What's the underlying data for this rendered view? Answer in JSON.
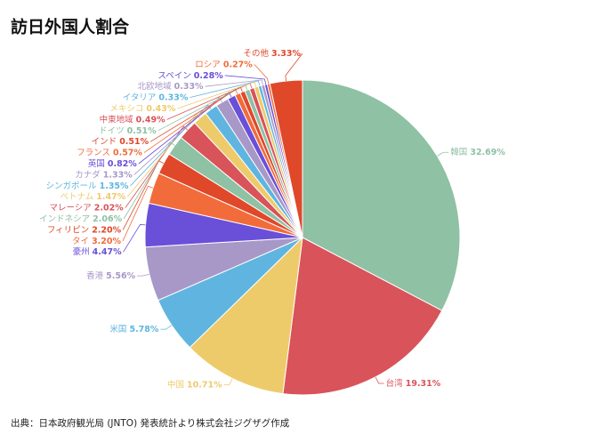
{
  "chart_data": {
    "type": "pie",
    "title": "訪日外国人割合",
    "source": "出典：日本政府観光局 (JNTO) 発表統計より株式会社ジグザグ作成",
    "categories": [
      "韓国",
      "台湾",
      "中国",
      "米国",
      "香港",
      "豪州",
      "タイ",
      "フィリピン",
      "インドネシア",
      "マレーシア",
      "ベトナム",
      "シンガポール",
      "カナダ",
      "英国",
      "フランス",
      "インド",
      "ドイツ",
      "中東地域",
      "メキシコ",
      "イタリア",
      "北欧地域",
      "スペイン",
      "ロシア",
      "その他"
    ],
    "values": [
      32.69,
      19.31,
      10.71,
      5.78,
      5.56,
      4.47,
      3.2,
      2.2,
      2.06,
      2.02,
      1.47,
      1.35,
      1.33,
      0.82,
      0.57,
      0.51,
      0.51,
      0.49,
      0.43,
      0.33,
      0.33,
      0.28,
      0.27,
      3.33
    ],
    "value_labels": [
      "32.69%",
      "19.31%",
      "10.71%",
      "5.78%",
      "5.56%",
      "4.47%",
      "3.20%",
      "2.20%",
      "2.06%",
      "2.02%",
      "1.47%",
      "1.35%",
      "1.33%",
      "0.82%",
      "0.57%",
      "0.51%",
      "0.51%",
      "0.49%",
      "0.43%",
      "0.33%",
      "0.33%",
      "0.28%",
      "0.27%",
      "3.33%"
    ],
    "colors": [
      "#8fc1a4",
      "#d9535a",
      "#eecb6a",
      "#5fb5e0",
      "#a898c8",
      "#6a4fd8",
      "#f26b3a",
      "#e0482a",
      "#8fc1a4",
      "#d9535a",
      "#eecb6a",
      "#5fb5e0",
      "#a898c8",
      "#6a4fd8",
      "#f26b3a",
      "#e0482a",
      "#8fc1a4",
      "#d9535a",
      "#eecb6a",
      "#5fb5e0",
      "#a898c8",
      "#6a4fd8",
      "#f26b3a",
      "#e0482a"
    ]
  }
}
